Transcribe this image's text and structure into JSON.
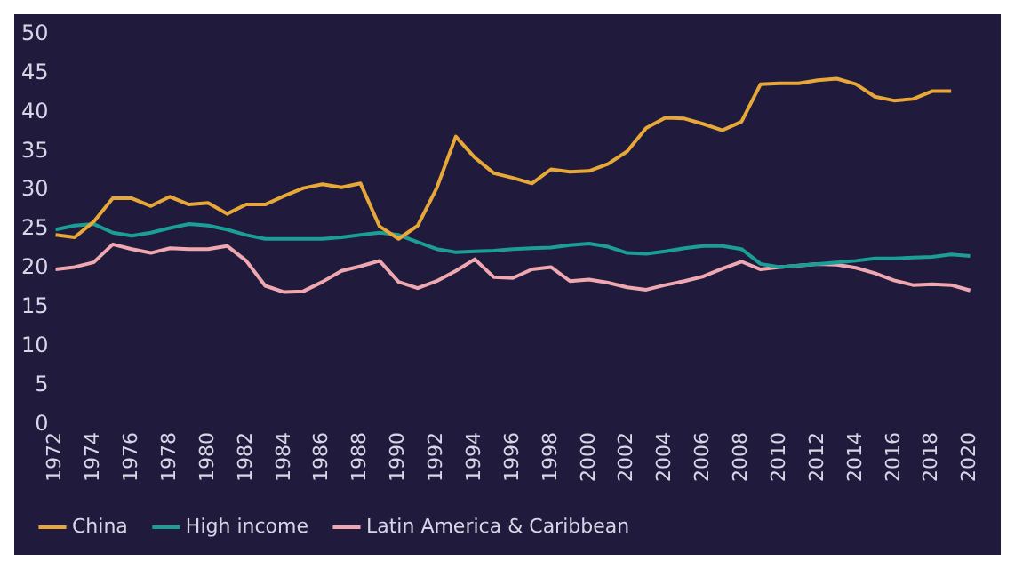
{
  "chart_data": {
    "type": "line",
    "categories": [
      "1972",
      null,
      "1974",
      null,
      "1976",
      null,
      "1978",
      null,
      "1980",
      null,
      "1982",
      null,
      "1984",
      null,
      "1986",
      null,
      "1988",
      null,
      "1990",
      null,
      "1992",
      null,
      "1994",
      null,
      "1996",
      null,
      "1998",
      null,
      "2000",
      null,
      "2002",
      null,
      "2004",
      null,
      "2006",
      null,
      "2008",
      null,
      "2010",
      null,
      "2012",
      null,
      "2014",
      null,
      "2016",
      null,
      "2018",
      null,
      "2020"
    ],
    "series": [
      {
        "name": "China",
        "color": "#e8a838",
        "values": [
          24.3,
          24.0,
          26,
          29,
          29,
          28,
          29.2,
          28.2,
          28.4,
          27,
          28.2,
          28.2,
          29.3,
          30.3,
          30.8,
          30.4,
          30.9,
          25.4,
          23.8,
          25.5,
          30.3,
          36.9,
          34.2,
          32.2,
          31.6,
          30.9,
          32.7,
          32.4,
          32.5,
          33.4,
          35,
          38,
          39.3,
          39.2,
          38.5,
          37.7,
          38.8,
          43.6,
          43.7,
          43.7,
          44.1,
          44.3,
          43.6,
          42,
          41.5,
          41.7,
          42.7,
          42.7,
          null
        ]
      },
      {
        "name": "High income",
        "color": "#1a9e96",
        "values": [
          25,
          25.5,
          25.7,
          24.6,
          24.2,
          24.6,
          25.2,
          25.7,
          25.5,
          25,
          24.3,
          23.8,
          23.8,
          23.8,
          23.8,
          24,
          24.3,
          24.6,
          24.3,
          23.4,
          22.5,
          22.1,
          22.2,
          22.3,
          22.5,
          22.6,
          22.7,
          23,
          23.2,
          22.8,
          22.0,
          21.9,
          22.2,
          22.6,
          22.9,
          22.9,
          22.5,
          20.6,
          20.2,
          20.4,
          20.6,
          20.8,
          21.0,
          21.3,
          21.3,
          21.4,
          21.5,
          21.8,
          21.6
        ]
      },
      {
        "name": "Latin America & Caribbean",
        "color": "#f0a8b0",
        "values": [
          19.9,
          20.2,
          20.8,
          23.1,
          22.5,
          22,
          22.6,
          22.5,
          22.5,
          22.9,
          21,
          17.8,
          17,
          17.1,
          18.3,
          19.7,
          20.3,
          21,
          18.3,
          17.5,
          18.4,
          19.7,
          21.2,
          18.9,
          18.8,
          19.9,
          20.2,
          18.4,
          18.6,
          18.2,
          17.6,
          17.3,
          17.9,
          18.4,
          19.0,
          20.0,
          20.9,
          19.9,
          20.2,
          20.4,
          20.6,
          20.5,
          20.1,
          19.4,
          18.5,
          17.9,
          18.0,
          17.9,
          17.2
        ]
      }
    ],
    "ylim": [
      0,
      50
    ],
    "yticks": [
      0,
      5,
      10,
      15,
      20,
      25,
      30,
      35,
      40,
      45,
      50
    ],
    "grid": false,
    "legend": "bottom left",
    "marker": "none",
    "line_style": "solid"
  }
}
